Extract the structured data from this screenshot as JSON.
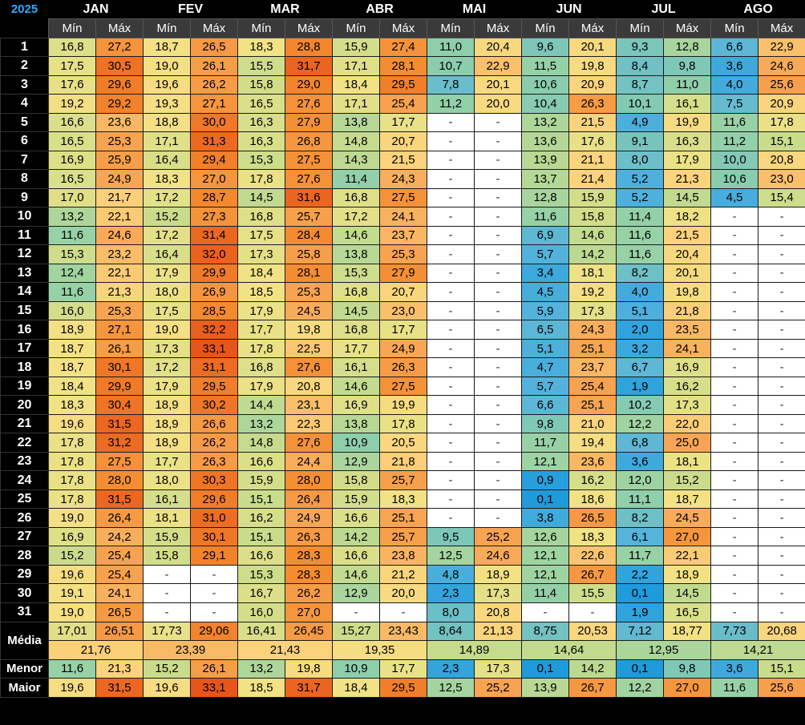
{
  "year": "2025",
  "months": [
    "JAN",
    "FEV",
    "MAR",
    "ABR",
    "MAI",
    "JUN",
    "JUL",
    "AGO"
  ],
  "min_label": "Mín",
  "max_label": "Máx",
  "days": [
    {
      "day": "1",
      "vals": [
        "16,8",
        "27,2",
        "18,7",
        "26,5",
        "18,3",
        "28,8",
        "15,9",
        "27,4",
        "11,0",
        "20,4",
        "9,6",
        "20,1",
        "9,3",
        "12,8",
        "6,6",
        "22,9"
      ]
    },
    {
      "day": "2",
      "vals": [
        "17,5",
        "30,5",
        "19,0",
        "26,1",
        "15,5",
        "31,7",
        "17,1",
        "28,1",
        "10,7",
        "22,9",
        "11,5",
        "19,8",
        "8,4",
        "9,8",
        "3,6",
        "24,6"
      ]
    },
    {
      "day": "3",
      "vals": [
        "17,6",
        "29,6",
        "19,6",
        "26,2",
        "15,8",
        "29,0",
        "18,4",
        "29,5",
        "7,8",
        "20,1",
        "10,6",
        "20,9",
        "8,7",
        "11,0",
        "4,0",
        "25,6"
      ]
    },
    {
      "day": "4",
      "vals": [
        "19,2",
        "29,2",
        "19,3",
        "27,1",
        "16,5",
        "27,6",
        "17,1",
        "25,4",
        "11,2",
        "20,0",
        "10,4",
        "26,3",
        "10,1",
        "16,1",
        "7,5",
        "20,9"
      ]
    },
    {
      "day": "5",
      "vals": [
        "16,6",
        "23,6",
        "18,8",
        "30,0",
        "16,3",
        "27,9",
        "13,8",
        "17,7",
        "-",
        "-",
        "13,2",
        "21,5",
        "4,9",
        "19,9",
        "11,6",
        "17,8"
      ]
    },
    {
      "day": "6",
      "vals": [
        "16,5",
        "25,3",
        "17,1",
        "31,3",
        "16,3",
        "26,8",
        "14,8",
        "20,7",
        "-",
        "-",
        "13,6",
        "17,6",
        "9,1",
        "16,3",
        "11,2",
        "15,1"
      ]
    },
    {
      "day": "7",
      "vals": [
        "16,9",
        "25,9",
        "16,4",
        "29,4",
        "15,3",
        "27,5",
        "14,3",
        "21,5",
        "-",
        "-",
        "13,9",
        "21,1",
        "8,0",
        "17,9",
        "10,0",
        "20,8"
      ]
    },
    {
      "day": "8",
      "vals": [
        "16,5",
        "24,9",
        "18,3",
        "27,0",
        "17,8",
        "27,6",
        "11,4",
        "24,3",
        "-",
        "-",
        "13,7",
        "21,4",
        "5,2",
        "21,3",
        "10,6",
        "23,0"
      ]
    },
    {
      "day": "9",
      "vals": [
        "17,0",
        "21,7",
        "17,2",
        "28,7",
        "14,5",
        "31,6",
        "16,8",
        "27,5",
        "-",
        "-",
        "12,8",
        "15,9",
        "5,2",
        "14,5",
        "4,5",
        "15,4"
      ]
    },
    {
      "day": "10",
      "vals": [
        "13,2",
        "22,1",
        "15,2",
        "27,3",
        "16,8",
        "25,7",
        "17,2",
        "24,1",
        "-",
        "-",
        "11,6",
        "15,8",
        "11,4",
        "18,2",
        "-",
        "-"
      ]
    },
    {
      "day": "11",
      "vals": [
        "11,6",
        "24,6",
        "17,2",
        "31,4",
        "17,5",
        "28,4",
        "14,6",
        "23,7",
        "-",
        "-",
        "6,9",
        "14,6",
        "11,6",
        "21,5",
        "-",
        "-"
      ]
    },
    {
      "day": "12",
      "vals": [
        "15,3",
        "23,2",
        "16,4",
        "32,0",
        "17,3",
        "25,8",
        "13,8",
        "25,3",
        "-",
        "-",
        "5,7",
        "14,2",
        "11,6",
        "20,4",
        "-",
        "-"
      ]
    },
    {
      "day": "13",
      "vals": [
        "12,4",
        "22,1",
        "17,9",
        "29,9",
        "18,4",
        "28,1",
        "15,3",
        "27,9",
        "-",
        "-",
        "3,4",
        "18,1",
        "8,2",
        "20,1",
        "-",
        "-"
      ]
    },
    {
      "day": "14",
      "vals": [
        "11,6",
        "21,3",
        "18,0",
        "26,9",
        "18,5",
        "25,3",
        "16,8",
        "20,7",
        "-",
        "-",
        "4,5",
        "19,2",
        "4,0",
        "19,8",
        "-",
        "-"
      ]
    },
    {
      "day": "15",
      "vals": [
        "16,0",
        "25,3",
        "17,5",
        "28,5",
        "17,9",
        "24,5",
        "14,5",
        "23,0",
        "-",
        "-",
        "5,9",
        "17,3",
        "5,1",
        "21,8",
        "-",
        "-"
      ]
    },
    {
      "day": "16",
      "vals": [
        "18,9",
        "27,1",
        "19,0",
        "32,2",
        "17,7",
        "19,8",
        "16,8",
        "17,7",
        "-",
        "-",
        "6,5",
        "24,3",
        "2,0",
        "23,5",
        "-",
        "-"
      ]
    },
    {
      "day": "17",
      "vals": [
        "18,7",
        "26,1",
        "17,3",
        "33,1",
        "17,8",
        "22,5",
        "17,7",
        "24,9",
        "-",
        "-",
        "5,1",
        "25,1",
        "3,2",
        "24,1",
        "-",
        "-"
      ]
    },
    {
      "day": "18",
      "vals": [
        "18,7",
        "30,1",
        "17,2",
        "31,1",
        "16,8",
        "27,6",
        "16,1",
        "26,3",
        "-",
        "-",
        "4,7",
        "23,7",
        "6,7",
        "16,9",
        "-",
        "-"
      ]
    },
    {
      "day": "19",
      "vals": [
        "18,4",
        "29,9",
        "17,9",
        "29,5",
        "17,9",
        "20,8",
        "14,6",
        "27,5",
        "-",
        "-",
        "5,7",
        "25,4",
        "1,9",
        "16,2",
        "-",
        "-"
      ]
    },
    {
      "day": "20",
      "vals": [
        "18,3",
        "30,4",
        "18,9",
        "30,2",
        "14,4",
        "23,1",
        "16,9",
        "19,9",
        "-",
        "-",
        "6,6",
        "25,1",
        "10,2",
        "17,3",
        "-",
        "-"
      ]
    },
    {
      "day": "21",
      "vals": [
        "19,6",
        "31,5",
        "18,9",
        "26,6",
        "13,2",
        "22,3",
        "13,8",
        "17,8",
        "-",
        "-",
        "9,8",
        "21,0",
        "12,2",
        "22,0",
        "-",
        "-"
      ]
    },
    {
      "day": "22",
      "vals": [
        "17,8",
        "31,2",
        "18,9",
        "26,2",
        "14,8",
        "27,6",
        "10,9",
        "20,5",
        "-",
        "-",
        "11,7",
        "19,4",
        "6,8",
        "25,0",
        "-",
        "-"
      ]
    },
    {
      "day": "23",
      "vals": [
        "17,8",
        "27,5",
        "17,7",
        "26,3",
        "16,6",
        "24,4",
        "12,9",
        "21,8",
        "-",
        "-",
        "12,1",
        "23,6",
        "3,6",
        "18,1",
        "-",
        "-"
      ]
    },
    {
      "day": "24",
      "vals": [
        "17,8",
        "28,0",
        "18,0",
        "30,3",
        "15,9",
        "28,0",
        "15,8",
        "25,7",
        "-",
        "-",
        "0,9",
        "16,2",
        "12,0",
        "15,2",
        "-",
        "-"
      ]
    },
    {
      "day": "25",
      "vals": [
        "17,8",
        "31,5",
        "16,1",
        "29,6",
        "15,1",
        "26,4",
        "15,9",
        "18,3",
        "-",
        "-",
        "0,1",
        "18,6",
        "11,1",
        "18,7",
        "-",
        "-"
      ]
    },
    {
      "day": "26",
      "vals": [
        "19,0",
        "26,4",
        "18,1",
        "31,0",
        "16,2",
        "24,9",
        "16,6",
        "25,1",
        "-",
        "-",
        "3,8",
        "26,5",
        "8,2",
        "24,5",
        "-",
        "-"
      ]
    },
    {
      "day": "27",
      "vals": [
        "16,9",
        "24,2",
        "15,9",
        "30,1",
        "15,1",
        "26,3",
        "14,2",
        "25,7",
        "9,5",
        "25,2",
        "12,6",
        "18,3",
        "6,1",
        "27,0",
        "-",
        "-"
      ]
    },
    {
      "day": "28",
      "vals": [
        "15,2",
        "25,4",
        "15,8",
        "29,1",
        "16,6",
        "28,3",
        "16,6",
        "23,8",
        "12,5",
        "24,6",
        "12,1",
        "22,6",
        "11,7",
        "22,1",
        "-",
        "-"
      ]
    },
    {
      "day": "29",
      "vals": [
        "19,6",
        "25,4",
        "-",
        "-",
        "15,3",
        "28,3",
        "14,6",
        "21,2",
        "4,8",
        "18,9",
        "12,1",
        "26,7",
        "2,2",
        "18,9",
        "-",
        "-"
      ]
    },
    {
      "day": "30",
      "vals": [
        "19,1",
        "24,1",
        "-",
        "-",
        "16,7",
        "26,2",
        "12,9",
        "20,0",
        "2,3",
        "17,3",
        "11,4",
        "15,5",
        "0,1",
        "14,5",
        "-",
        "-"
      ]
    },
    {
      "day": "31",
      "vals": [
        "19,0",
        "26,5",
        "-",
        "-",
        "16,0",
        "27,0",
        "-",
        "-",
        "8,0",
        "20,8",
        "-",
        "-",
        "1,9",
        "16,5",
        "-",
        "-"
      ]
    }
  ],
  "media": {
    "label": "Média",
    "vals": [
      "17,01",
      "26,51",
      "17,73",
      "29,06",
      "16,41",
      "26,45",
      "15,27",
      "23,43",
      "8,64",
      "21,13",
      "8,75",
      "20,53",
      "7,12",
      "18,77",
      "7,73",
      "20,68"
    ],
    "totals": [
      "21,76",
      "23,39",
      "21,43",
      "19,35",
      "14,89",
      "14,64",
      "12,95",
      "14,21"
    ]
  },
  "menor": {
    "label": "Menor",
    "vals": [
      "11,6",
      "21,3",
      "15,2",
      "26,1",
      "13,2",
      "19,8",
      "10,9",
      "17,7",
      "2,3",
      "17,3",
      "0,1",
      "14,2",
      "0,1",
      "9,8",
      "3,6",
      "15,1"
    ]
  },
  "maior": {
    "label": "Maior",
    "vals": [
      "19,6",
      "31,5",
      "19,6",
      "33,1",
      "18,5",
      "31,7",
      "18,4",
      "29,5",
      "12,5",
      "25,2",
      "13,9",
      "26,7",
      "12,2",
      "27,0",
      "11,6",
      "25,6"
    ]
  }
}
